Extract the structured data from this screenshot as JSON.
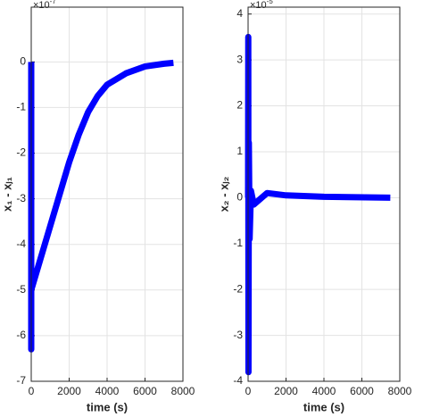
{
  "chart_data": [
    {
      "type": "line",
      "xlabel": "time (s)",
      "ylabel": "x₁ - xⱼ₁",
      "y_multiplier": {
        "base": "×10",
        "exponent": "-7"
      },
      "xlim": [
        0,
        8000
      ],
      "xticks": [
        0,
        2000,
        4000,
        6000,
        8000
      ],
      "ylim": [
        -7,
        1.2
      ],
      "yticks": [
        -7,
        -6,
        -5,
        -4,
        -3,
        -2,
        -1,
        0
      ],
      "grid": true,
      "x": [
        0,
        0,
        0,
        500,
        1000,
        1500,
        2000,
        2500,
        3000,
        3500,
        4000,
        5000,
        6000,
        7000,
        7500
      ],
      "series": [
        {
          "color": "#0000ff",
          "values": [
            0,
            -6.3,
            -5,
            -4.3,
            -3.6,
            -2.9,
            -2.2,
            -1.6,
            -1.1,
            -0.75,
            -0.5,
            -0.25,
            -0.1,
            -0.04,
            -0.02
          ]
        }
      ]
    },
    {
      "type": "line",
      "xlabel": "time (s)",
      "ylabel": "x₂ - xⱼ₂",
      "y_multiplier": {
        "base": "×10",
        "exponent": "-5"
      },
      "xlim": [
        0,
        8000
      ],
      "xticks": [
        0,
        2000,
        4000,
        6000,
        8000
      ],
      "ylim": [
        -4,
        4.15
      ],
      "yticks": [
        -4,
        -3,
        -2,
        -1,
        0,
        1,
        2,
        3,
        4
      ],
      "grid": true,
      "x": [
        0,
        10,
        20,
        40,
        80,
        150,
        300,
        1000,
        2000,
        4000,
        7500
      ],
      "series": [
        {
          "color": "#0000ff",
          "values": [
            0,
            3.5,
            -3.8,
            1.2,
            -0.9,
            0.15,
            -0.15,
            0.1,
            0.05,
            0.02,
            0
          ]
        }
      ]
    }
  ]
}
